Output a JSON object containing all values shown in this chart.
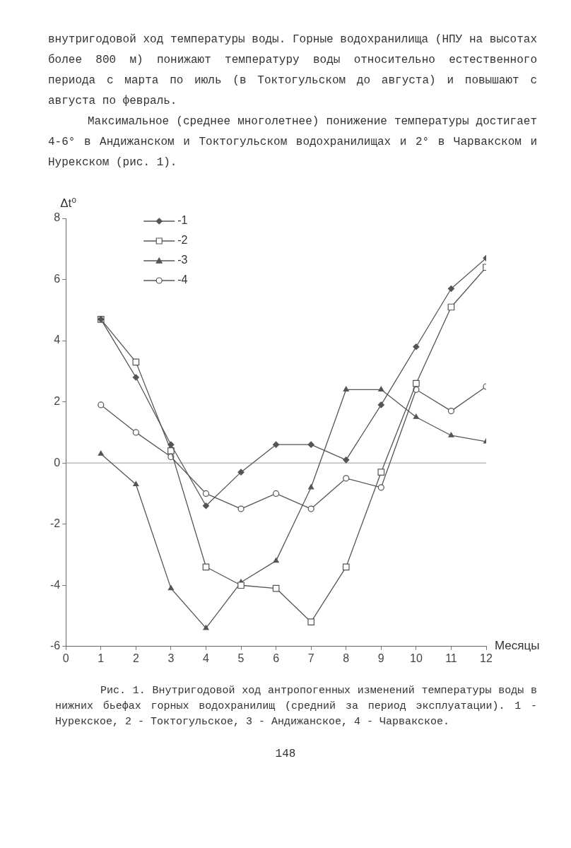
{
  "chart_data": {
    "type": "line",
    "title": "Рис. 1. Внутригодовой ход антропогенных изменений температуры воды в нижних бьефах горных водохранилищ (средний за период эксплуатации). 1 - Нурекское, 2 - Токтогульское, 3 - Андижанское, 4 - Чарвакское.",
    "annotations": [
      "внутригодовой ход температуры воды.  Горные водохранилища (НПУ на высотах более 800 м) понижают температуру воды относительно естественного периода с марта по июль (в Токтогульском до августа) и повышают с августа по февраль.",
      "Максимальное (среднее многолетнее) понижение температуры достигает 4-6° в Андижанском и Токтогульском водохранилищах и 2° в Чарвакском и Нурекском (рис. 1).",
      "148"
    ],
    "xlabel": "Месяцы",
    "ylabel": "Δt⁰",
    "x": [
      1,
      2,
      3,
      4,
      5,
      6,
      7,
      8,
      9,
      10,
      11,
      12
    ],
    "series": [
      {
        "name": "-1",
        "color": "#555555",
        "marker": "diamond",
        "values": [
          4.7,
          2.8,
          0.6,
          -1.4,
          -0.3,
          0.6,
          0.6,
          0.1,
          1.9,
          3.8,
          5.7,
          6.7
        ]
      },
      {
        "name": "-2",
        "color": "#555555",
        "marker": "square",
        "values": [
          4.7,
          3.3,
          0.4,
          -3.4,
          -4.0,
          -4.1,
          -5.2,
          -3.4,
          -0.3,
          2.6,
          5.1,
          6.4
        ]
      },
      {
        "name": "-3",
        "color": "#555555",
        "marker": "triangle",
        "values": [
          0.3,
          -0.7,
          -4.1,
          -5.4,
          -3.9,
          -3.2,
          -0.8,
          2.4,
          2.4,
          1.5,
          0.9,
          0.7
        ]
      },
      {
        "name": "-4",
        "color": "#555555",
        "marker": "circle",
        "values": [
          1.9,
          1.0,
          0.2,
          -1.0,
          -1.5,
          -1.0,
          -1.5,
          -0.5,
          -0.8,
          2.4,
          1.7,
          2.5
        ]
      }
    ],
    "xlim": [
      0,
      12
    ],
    "xticks": [
      0,
      1,
      2,
      3,
      4,
      5,
      6,
      7,
      8,
      9,
      10,
      11,
      12
    ],
    "ylim": [
      -6,
      8
    ],
    "yticks": [
      -6,
      -4,
      -2,
      0,
      2,
      4,
      6,
      8
    ],
    "ref_lines": [
      {
        "axis": "y",
        "value": 0,
        "color": "#999999"
      }
    ],
    "legend": "top left",
    "line_style": "solid"
  }
}
